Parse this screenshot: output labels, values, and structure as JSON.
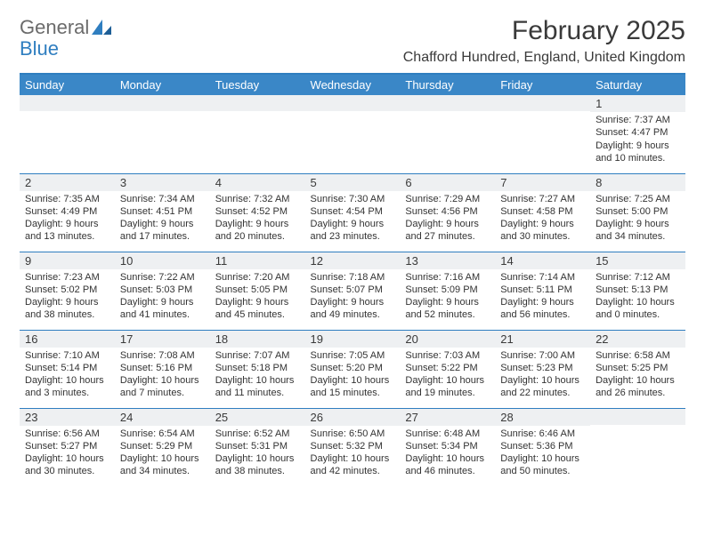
{
  "logo": {
    "text_a": "General",
    "text_b": "Blue"
  },
  "title": {
    "month": "February 2025",
    "location": "Chafford Hundred, England, United Kingdom"
  },
  "colors": {
    "accent": "#3a87c7",
    "rule": "#2f7ec0",
    "strip": "#eef0f2",
    "text": "#333333"
  },
  "weekdays": [
    "Sunday",
    "Monday",
    "Tuesday",
    "Wednesday",
    "Thursday",
    "Friday",
    "Saturday"
  ],
  "weeks": [
    [
      null,
      null,
      null,
      null,
      null,
      null,
      {
        "d": "1",
        "sr": "Sunrise: 7:37 AM",
        "ss": "Sunset: 4:47 PM",
        "dl": "Daylight: 9 hours and 10 minutes."
      }
    ],
    [
      {
        "d": "2",
        "sr": "Sunrise: 7:35 AM",
        "ss": "Sunset: 4:49 PM",
        "dl": "Daylight: 9 hours and 13 minutes."
      },
      {
        "d": "3",
        "sr": "Sunrise: 7:34 AM",
        "ss": "Sunset: 4:51 PM",
        "dl": "Daylight: 9 hours and 17 minutes."
      },
      {
        "d": "4",
        "sr": "Sunrise: 7:32 AM",
        "ss": "Sunset: 4:52 PM",
        "dl": "Daylight: 9 hours and 20 minutes."
      },
      {
        "d": "5",
        "sr": "Sunrise: 7:30 AM",
        "ss": "Sunset: 4:54 PM",
        "dl": "Daylight: 9 hours and 23 minutes."
      },
      {
        "d": "6",
        "sr": "Sunrise: 7:29 AM",
        "ss": "Sunset: 4:56 PM",
        "dl": "Daylight: 9 hours and 27 minutes."
      },
      {
        "d": "7",
        "sr": "Sunrise: 7:27 AM",
        "ss": "Sunset: 4:58 PM",
        "dl": "Daylight: 9 hours and 30 minutes."
      },
      {
        "d": "8",
        "sr": "Sunrise: 7:25 AM",
        "ss": "Sunset: 5:00 PM",
        "dl": "Daylight: 9 hours and 34 minutes."
      }
    ],
    [
      {
        "d": "9",
        "sr": "Sunrise: 7:23 AM",
        "ss": "Sunset: 5:02 PM",
        "dl": "Daylight: 9 hours and 38 minutes."
      },
      {
        "d": "10",
        "sr": "Sunrise: 7:22 AM",
        "ss": "Sunset: 5:03 PM",
        "dl": "Daylight: 9 hours and 41 minutes."
      },
      {
        "d": "11",
        "sr": "Sunrise: 7:20 AM",
        "ss": "Sunset: 5:05 PM",
        "dl": "Daylight: 9 hours and 45 minutes."
      },
      {
        "d": "12",
        "sr": "Sunrise: 7:18 AM",
        "ss": "Sunset: 5:07 PM",
        "dl": "Daylight: 9 hours and 49 minutes."
      },
      {
        "d": "13",
        "sr": "Sunrise: 7:16 AM",
        "ss": "Sunset: 5:09 PM",
        "dl": "Daylight: 9 hours and 52 minutes."
      },
      {
        "d": "14",
        "sr": "Sunrise: 7:14 AM",
        "ss": "Sunset: 5:11 PM",
        "dl": "Daylight: 9 hours and 56 minutes."
      },
      {
        "d": "15",
        "sr": "Sunrise: 7:12 AM",
        "ss": "Sunset: 5:13 PM",
        "dl": "Daylight: 10 hours and 0 minutes."
      }
    ],
    [
      {
        "d": "16",
        "sr": "Sunrise: 7:10 AM",
        "ss": "Sunset: 5:14 PM",
        "dl": "Daylight: 10 hours and 3 minutes."
      },
      {
        "d": "17",
        "sr": "Sunrise: 7:08 AM",
        "ss": "Sunset: 5:16 PM",
        "dl": "Daylight: 10 hours and 7 minutes."
      },
      {
        "d": "18",
        "sr": "Sunrise: 7:07 AM",
        "ss": "Sunset: 5:18 PM",
        "dl": "Daylight: 10 hours and 11 minutes."
      },
      {
        "d": "19",
        "sr": "Sunrise: 7:05 AM",
        "ss": "Sunset: 5:20 PM",
        "dl": "Daylight: 10 hours and 15 minutes."
      },
      {
        "d": "20",
        "sr": "Sunrise: 7:03 AM",
        "ss": "Sunset: 5:22 PM",
        "dl": "Daylight: 10 hours and 19 minutes."
      },
      {
        "d": "21",
        "sr": "Sunrise: 7:00 AM",
        "ss": "Sunset: 5:23 PM",
        "dl": "Daylight: 10 hours and 22 minutes."
      },
      {
        "d": "22",
        "sr": "Sunrise: 6:58 AM",
        "ss": "Sunset: 5:25 PM",
        "dl": "Daylight: 10 hours and 26 minutes."
      }
    ],
    [
      {
        "d": "23",
        "sr": "Sunrise: 6:56 AM",
        "ss": "Sunset: 5:27 PM",
        "dl": "Daylight: 10 hours and 30 minutes."
      },
      {
        "d": "24",
        "sr": "Sunrise: 6:54 AM",
        "ss": "Sunset: 5:29 PM",
        "dl": "Daylight: 10 hours and 34 minutes."
      },
      {
        "d": "25",
        "sr": "Sunrise: 6:52 AM",
        "ss": "Sunset: 5:31 PM",
        "dl": "Daylight: 10 hours and 38 minutes."
      },
      {
        "d": "26",
        "sr": "Sunrise: 6:50 AM",
        "ss": "Sunset: 5:32 PM",
        "dl": "Daylight: 10 hours and 42 minutes."
      },
      {
        "d": "27",
        "sr": "Sunrise: 6:48 AM",
        "ss": "Sunset: 5:34 PM",
        "dl": "Daylight: 10 hours and 46 minutes."
      },
      {
        "d": "28",
        "sr": "Sunrise: 6:46 AM",
        "ss": "Sunset: 5:36 PM",
        "dl": "Daylight: 10 hours and 50 minutes."
      },
      null
    ]
  ]
}
